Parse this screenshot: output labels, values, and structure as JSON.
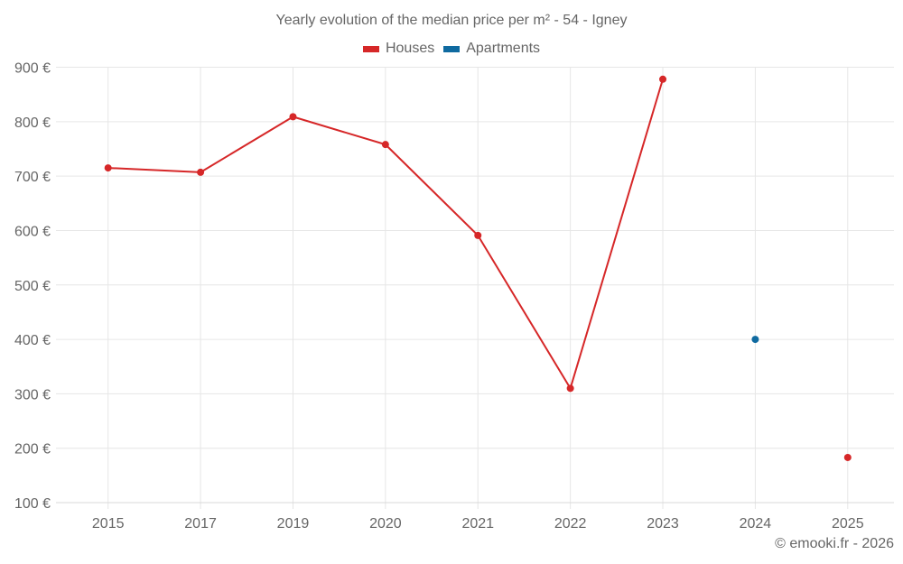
{
  "chart": {
    "title": "Yearly evolution of the median price per m² - 54 - Igney",
    "credit": "© emooki.fr - 2026",
    "legend": [
      {
        "label": "Houses",
        "color": "#d62728"
      },
      {
        "label": "Apartments",
        "color": "#0f6aa0"
      }
    ]
  },
  "chart_data": {
    "type": "line",
    "title": "Yearly evolution of the median price per m² - 54 - Igney",
    "xlabel": "",
    "ylabel": "",
    "categories": [
      "2015",
      "2017",
      "2019",
      "2020",
      "2021",
      "2022",
      "2023",
      "2024",
      "2025"
    ],
    "y_ticks": [
      100,
      200,
      300,
      400,
      500,
      600,
      700,
      800,
      900
    ],
    "y_tick_labels": [
      "100 €",
      "200 €",
      "300 €",
      "400 €",
      "500 €",
      "600 €",
      "700 €",
      "800 €",
      "900 €"
    ],
    "ylim": [
      100,
      900
    ],
    "grid": true,
    "legend_position": "top",
    "series": [
      {
        "name": "Houses",
        "color": "#d62728",
        "values": [
          715,
          707,
          809,
          758,
          591,
          310,
          878,
          null,
          183
        ]
      },
      {
        "name": "Apartments",
        "color": "#0f6aa0",
        "values": [
          null,
          null,
          null,
          null,
          null,
          null,
          null,
          400,
          null
        ]
      }
    ]
  }
}
